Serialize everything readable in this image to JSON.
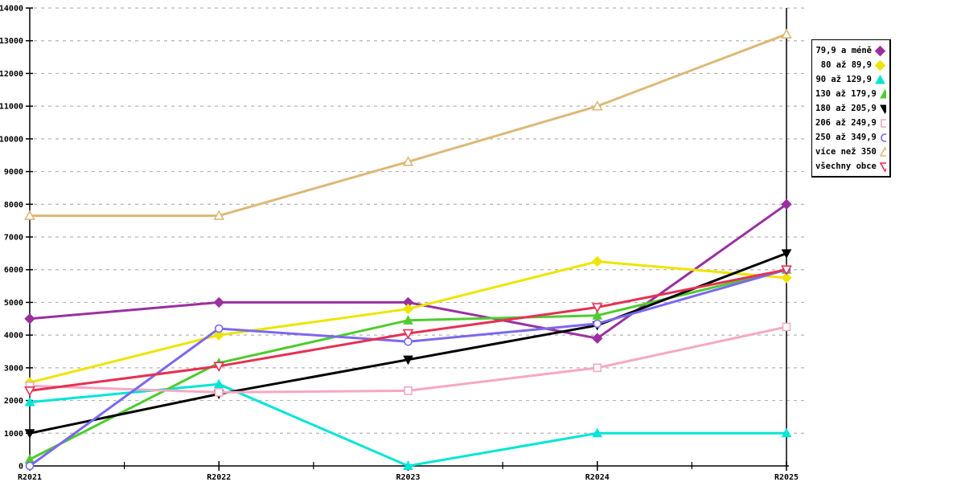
{
  "chart_data": {
    "type": "line",
    "title": "",
    "xlabel": "",
    "ylabel": "",
    "categories": [
      "R2021",
      "R2022",
      "R2023",
      "R2024",
      "R2025"
    ],
    "series": [
      {
        "name": "79,9 a méně",
        "color": "#9A30A0",
        "marker": "diamond",
        "filled": true,
        "values": [
          4500,
          5000,
          5000,
          3900,
          8000
        ]
      },
      {
        "name": "80 až 89,9",
        "color": "#EDE500",
        "marker": "diamond",
        "filled": true,
        "values": [
          2550,
          4000,
          4800,
          6250,
          5750
        ]
      },
      {
        "name": "90 až 129,9",
        "color": "#00E5D5",
        "marker": "triangle-up",
        "filled": true,
        "values": [
          1950,
          2500,
          0,
          1000,
          1000
        ]
      },
      {
        "name": "130 až 179,9",
        "color": "#4ECB2F",
        "marker": "triangle-up",
        "filled": true,
        "values": [
          200,
          3150,
          4450,
          4600,
          6000
        ]
      },
      {
        "name": "180 až 205,9",
        "color": "#000000",
        "marker": "triangle-down",
        "filled": true,
        "values": [
          1000,
          2200,
          3250,
          4300,
          6500
        ]
      },
      {
        "name": "206 až 249,9",
        "color": "#F5A8C3",
        "marker": "square",
        "filled": false,
        "values": [
          2450,
          2250,
          2300,
          3000,
          4250
        ]
      },
      {
        "name": "250 až 349,9",
        "color": "#7B68EE",
        "marker": "circle",
        "filled": false,
        "values": [
          0,
          4200,
          3800,
          4350,
          6000
        ]
      },
      {
        "name": "více než 350",
        "color": "#DEB877",
        "marker": "triangle-up",
        "filled": false,
        "values": [
          7650,
          7650,
          9300,
          11000,
          13200
        ]
      },
      {
        "name": "všechny obce",
        "color": "#E63054",
        "marker": "triangle-down",
        "filled": false,
        "values": [
          2300,
          3050,
          4050,
          4850,
          6000
        ]
      }
    ],
    "ylim": [
      0,
      14000
    ],
    "ytick_step": 1000,
    "grid": "horizontal-dashed",
    "grid_color": "#b4b4b4",
    "axis_color": "#000000",
    "legend_position": "right"
  }
}
